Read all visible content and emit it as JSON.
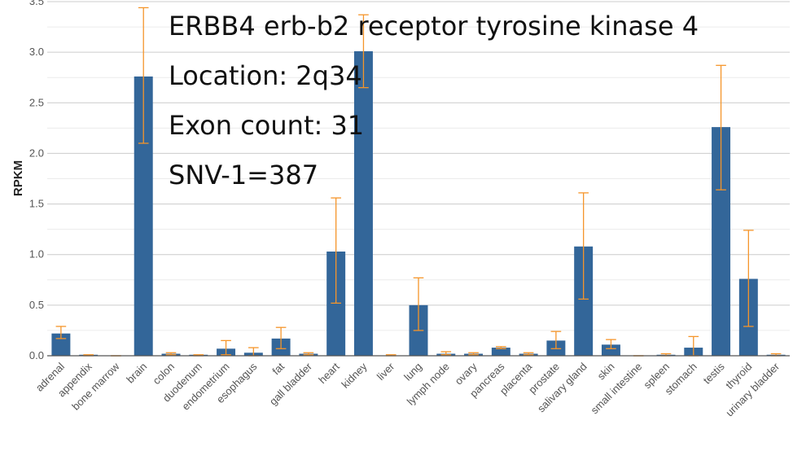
{
  "chart_data": {
    "type": "bar",
    "ylabel": "RPKM",
    "xlabel": "",
    "ylim": [
      0,
      3.5
    ],
    "yticks": [
      0.0,
      0.5,
      1.0,
      1.5,
      2.0,
      2.5,
      3.0,
      3.5
    ],
    "ytick_labels": [
      "0.0",
      "0.5",
      "1.0",
      "1.5",
      "2.0",
      "2.5",
      "3.0",
      "3.5"
    ],
    "grid": true,
    "categories": [
      "adrenal",
      "appendix",
      "bone marrow",
      "brain",
      "colon",
      "duodenum",
      "endometrium",
      "esophagus",
      "fat",
      "gall bladder",
      "heart",
      "kidney",
      "liver",
      "lung",
      "lymph node",
      "ovary",
      "pancreas",
      "placenta",
      "prostate",
      "salivary gland",
      "skin",
      "small intestine",
      "spleen",
      "stomach",
      "testis",
      "thyroid",
      "urinary bladder"
    ],
    "values": [
      0.22,
      0.01,
      0.0,
      2.76,
      0.02,
      0.01,
      0.07,
      0.03,
      0.17,
      0.02,
      1.03,
      3.01,
      0.0,
      0.5,
      0.02,
      0.02,
      0.08,
      0.02,
      0.15,
      1.08,
      0.11,
      0.0,
      0.01,
      0.08,
      2.26,
      0.76,
      0.01
    ],
    "error_low": [
      0.17,
      0.0,
      0.0,
      2.1,
      0.01,
      0.0,
      0.01,
      0.0,
      0.07,
      0.01,
      0.52,
      2.65,
      0.0,
      0.25,
      0.01,
      0.01,
      0.07,
      0.01,
      0.07,
      0.56,
      0.07,
      0.0,
      0.0,
      0.0,
      1.64,
      0.29,
      0.0
    ],
    "error_high": [
      0.29,
      0.01,
      0.0,
      3.44,
      0.03,
      0.01,
      0.15,
      0.08,
      0.28,
      0.03,
      1.56,
      3.37,
      0.01,
      0.77,
      0.04,
      0.03,
      0.09,
      0.03,
      0.24,
      1.61,
      0.16,
      0.0,
      0.02,
      0.19,
      2.87,
      1.24,
      0.02
    ],
    "colors": {
      "bar": "#336699",
      "error": "#f5952a",
      "grid": "#dddddd",
      "axis": "#555555"
    },
    "annotations": [
      "ERBB4 erb-b2 receptor tyrosine kinase 4",
      "Location: 2q34",
      "Exon count: 31",
      "SNV-1=387"
    ]
  }
}
